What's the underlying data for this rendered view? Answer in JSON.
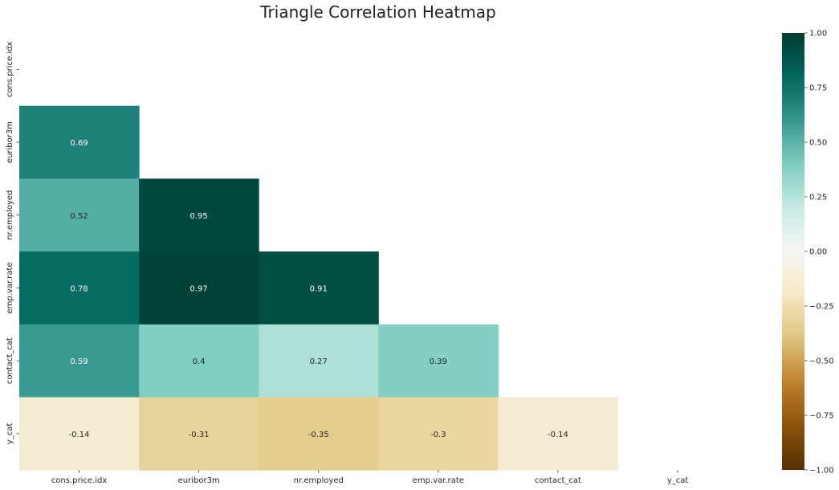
{
  "chart_data": {
    "type": "heatmap",
    "title": "Triangle Correlation Heatmap",
    "mask": "upper-triangle-including-diagonal",
    "rows": [
      "cons.price.idx",
      "euribor3m",
      "nr.employed",
      "emp.var.rate",
      "contact_cat",
      "y_cat"
    ],
    "columns": [
      "cons.price.idx",
      "euribor3m",
      "nr.employed",
      "emp.var.rate",
      "contact_cat",
      "y_cat"
    ],
    "values": [
      [
        null,
        null,
        null,
        null,
        null,
        null
      ],
      [
        0.69,
        null,
        null,
        null,
        null,
        null
      ],
      [
        0.52,
        0.95,
        null,
        null,
        null,
        null
      ],
      [
        0.78,
        0.97,
        0.91,
        null,
        null,
        null
      ],
      [
        0.59,
        0.4,
        0.27,
        0.39,
        null,
        null
      ],
      [
        -0.14,
        -0.31,
        -0.35,
        -0.3,
        -0.14,
        null
      ]
    ],
    "value_labels": [
      [
        null,
        null,
        null,
        null,
        null,
        null
      ],
      [
        "0.69",
        null,
        null,
        null,
        null,
        null
      ],
      [
        "0.52",
        "0.95",
        null,
        null,
        null,
        null
      ],
      [
        "0.78",
        "0.97",
        "0.91",
        null,
        null,
        null
      ],
      [
        "0.59",
        "0.4",
        "0.27",
        "0.39",
        null,
        null
      ],
      [
        "-0.14",
        "-0.31",
        "-0.35",
        "-0.3",
        "-0.14",
        null
      ]
    ],
    "colorbar": {
      "colormap": "BrBG",
      "vmin": -1.0,
      "vmax": 1.0,
      "ticks": [
        1.0,
        0.75,
        0.5,
        0.25,
        0.0,
        -0.25,
        -0.5,
        -0.75,
        -1.0
      ],
      "tick_labels": [
        "1.00",
        "0.75",
        "0.50",
        "0.25",
        "0.00",
        "−0.25",
        "−0.50",
        "−0.75",
        "−1.00"
      ],
      "placement": "right"
    },
    "grid": false,
    "colors": {
      "high": "#003c30",
      "mid": "#f5f5f5",
      "low": "#543005"
    }
  }
}
